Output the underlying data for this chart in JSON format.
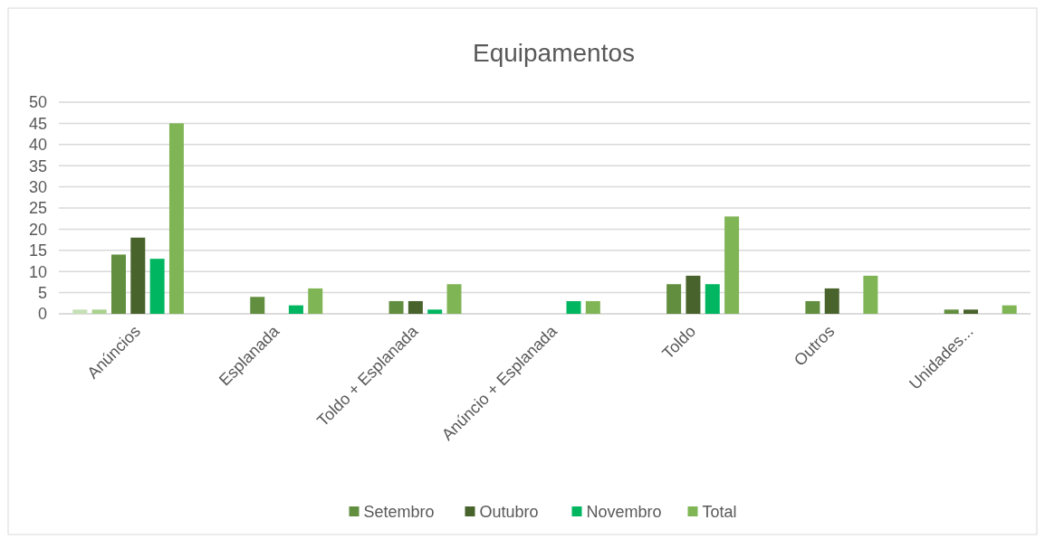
{
  "chart_data": {
    "type": "bar",
    "title": "Equipamentos",
    "categories": [
      "Anúncios",
      "Esplanada",
      "Toldo + Esplanada",
      "Anúncio + Esplanada",
      "Toldo",
      "Outros",
      "Unidades..."
    ],
    "series": [
      {
        "color": "#c5e0b4",
        "values": [
          1,
          null,
          null,
          null,
          null,
          null,
          null
        ]
      },
      {
        "color": "#a9d18e",
        "values": [
          1,
          null,
          null,
          null,
          null,
          null,
          null
        ]
      },
      {
        "name": "Setembro",
        "color": "#628f3f",
        "values": [
          14,
          4,
          3,
          null,
          7,
          3,
          1
        ]
      },
      {
        "name": "Outubro",
        "color": "#48632b",
        "values": [
          18,
          null,
          3,
          null,
          9,
          6,
          1
        ]
      },
      {
        "name": "Novembro",
        "color": "#00b661",
        "values": [
          13,
          2,
          1,
          3,
          7,
          null,
          null
        ]
      },
      {
        "name": "Total",
        "color": "#80b556",
        "values": [
          45,
          6,
          7,
          3,
          23,
          9,
          2
        ]
      }
    ],
    "ylim": [
      0,
      50
    ],
    "yticks": [
      0,
      5,
      10,
      15,
      20,
      25,
      30,
      35,
      40,
      45,
      50
    ],
    "grid": true,
    "legend": "bottom"
  }
}
